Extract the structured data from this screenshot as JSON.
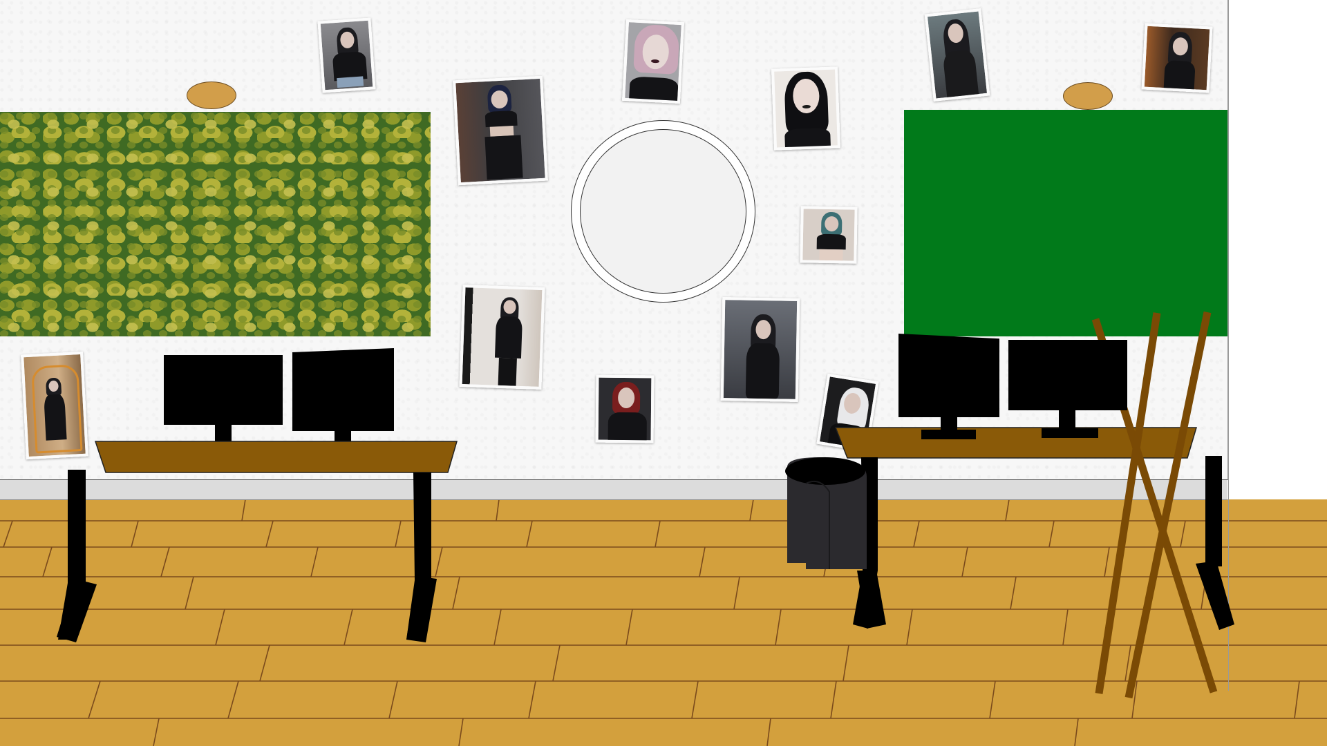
{
  "scene": {
    "description_tag": "studio-room",
    "colors": {
      "wall": "#f7f7f7",
      "floor": "#d3a03d",
      "floor_lines": "#7a4a1c",
      "green_screen": "#017a1a",
      "desk": "#8a5a08",
      "easel": "#7a4a05",
      "bin": "#2b2a2e"
    }
  },
  "photos": [
    {
      "id": "photo-1",
      "palette": [
        "#6e6e72",
        "#1b1b1f",
        "#d9c5bc",
        "#c9b5a8"
      ]
    },
    {
      "id": "photo-2",
      "palette": [
        "#4a4040",
        "#151518",
        "#d8c4b8",
        "#6d5e57"
      ]
    },
    {
      "id": "photo-3",
      "palette": [
        "#9a9a9e",
        "#111114",
        "#e4d3cf",
        "#c7a6b6"
      ]
    },
    {
      "id": "photo-4",
      "palette": [
        "#e8e4e0",
        "#0f0f12",
        "#eadbd5",
        "#2a2a2a"
      ]
    },
    {
      "id": "photo-5",
      "palette": [
        "#5c6b6e",
        "#1a1a1c",
        "#dcc8bd",
        "#3a3c40"
      ]
    },
    {
      "id": "photo-6",
      "palette": [
        "#3e2a1e",
        "#141416",
        "#dbc6b4",
        "#9a5a2a"
      ]
    },
    {
      "id": "photo-7",
      "palette": [
        "#d8cfc8",
        "#161618",
        "#e2cfc4",
        "#6aa3a8"
      ]
    },
    {
      "id": "photo-8",
      "palette": [
        "#e4e0dc",
        "#121214",
        "#dccabd",
        "#7a6f69"
      ]
    },
    {
      "id": "photo-9",
      "palette": [
        "#5a5e66",
        "#0e0e10",
        "#e2d4cf",
        "#2b2b30"
      ]
    },
    {
      "id": "photo-10",
      "palette": [
        "#2c2c30",
        "#18181a",
        "#e8d6cc",
        "#7a1e1e"
      ]
    },
    {
      "id": "photo-11",
      "palette": [
        "#1c1c1e",
        "#e8e8ea",
        "#e4d8d2",
        "#0e0e10"
      ]
    },
    {
      "id": "photo-12",
      "palette": [
        "#b08a60",
        "#161618",
        "#dbc6b4",
        "#d68c2e"
      ]
    }
  ]
}
